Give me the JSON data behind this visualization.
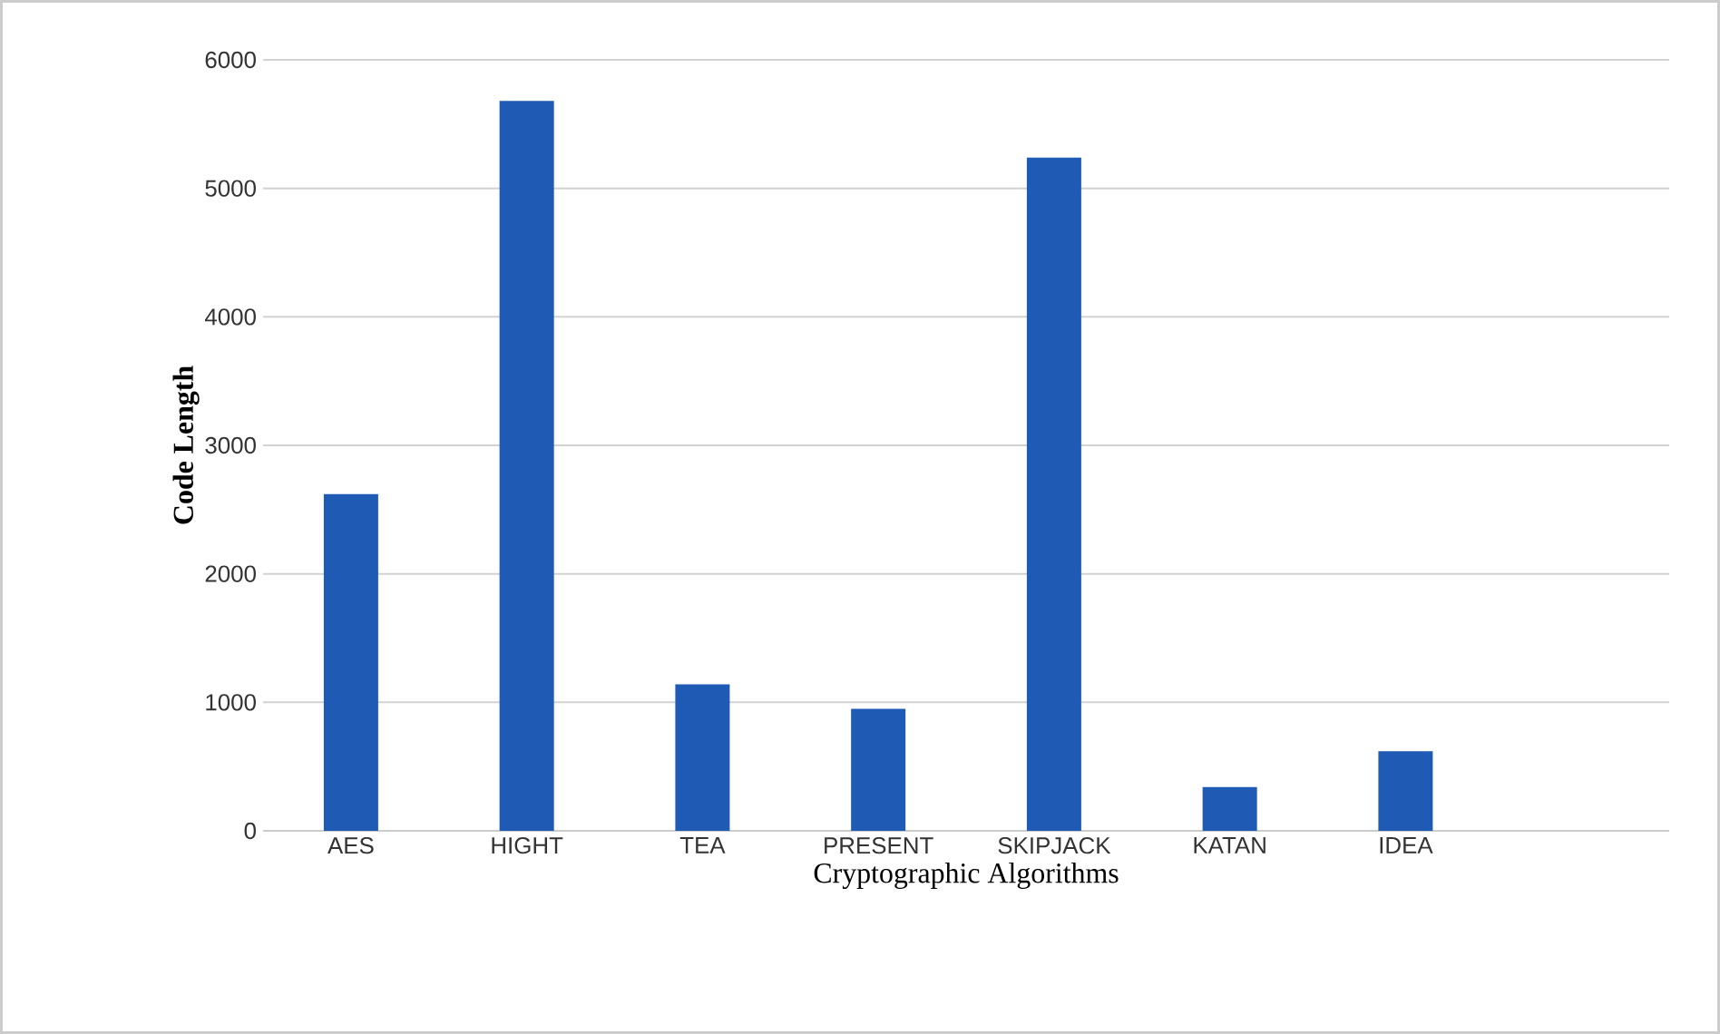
{
  "chart_data": {
    "type": "bar",
    "xlabel": "Cryptographic Algorithms",
    "ylabel": "Code Length",
    "categories": [
      "AES",
      "HIGHT",
      "TEA",
      "PRESENT",
      "SKIPJACK",
      "KATAN",
      "IDEA"
    ],
    "values": [
      2620,
      5680,
      1140,
      950,
      5240,
      340,
      620
    ],
    "color": "#1f5bb5",
    "ylim": [
      0,
      6000
    ],
    "yticks": [
      0,
      1000,
      2000,
      3000,
      4000,
      5000,
      6000
    ],
    "grid": "y"
  }
}
